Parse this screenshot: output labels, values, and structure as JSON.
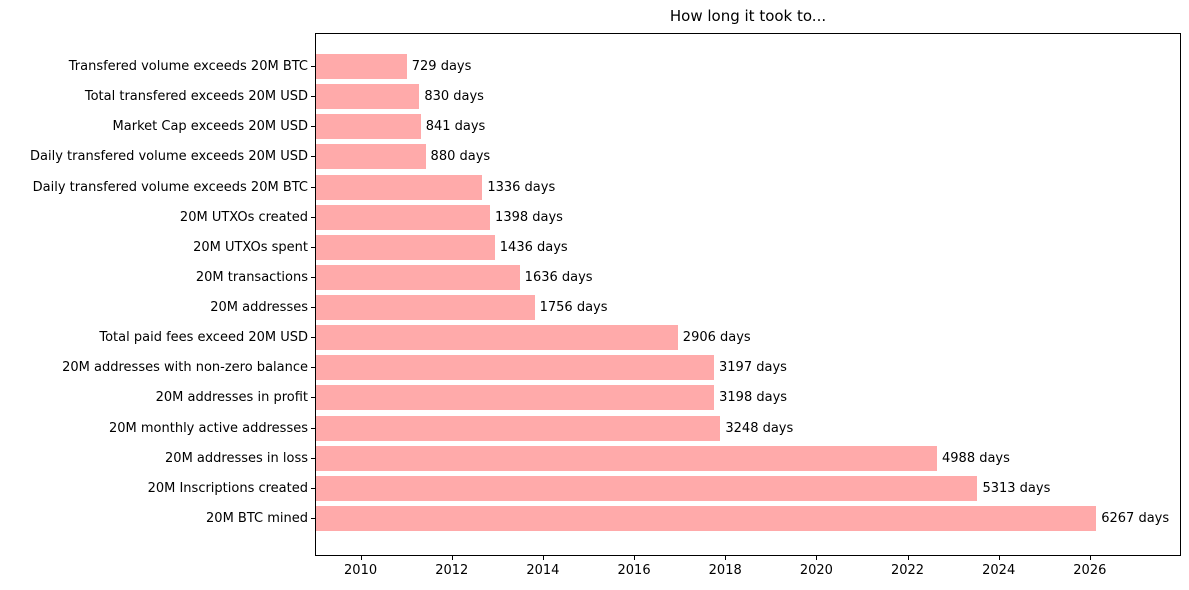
{
  "chart_data": {
    "type": "bar",
    "orientation": "horizontal",
    "title": "How long it took to...",
    "categories": [
      "Transfered volume exceeds 20M BTC",
      "Total transfered exceeds 20M USD",
      "Market Cap exceeds 20M USD",
      "Daily transfered volume exceeds 20M USD",
      "Daily transfered volume exceeds 20M BTC",
      "20M UTXOs created",
      "20M UTXOs spent",
      "20M transactions",
      "20M addresses",
      "Total paid fees exceed 20M USD",
      "20M addresses with non-zero balance",
      "20M addresses in profit",
      "20M monthly active addresses",
      "20M addresses in loss",
      "20M Inscriptions created",
      "20M BTC mined"
    ],
    "values": [
      729,
      830,
      841,
      880,
      1336,
      1398,
      1436,
      1636,
      1756,
      2906,
      3197,
      3198,
      3248,
      4988,
      5313,
      6267
    ],
    "value_suffix": " days",
    "bar_color": "#ffaaaa",
    "x_axis": {
      "ticks": [
        2010,
        2012,
        2014,
        2016,
        2018,
        2020,
        2022,
        2024,
        2026
      ],
      "tick_labels": [
        "2010",
        "2012",
        "2014",
        "2016",
        "2018",
        "2020",
        "2022",
        "2024",
        "2026"
      ],
      "xlim": [
        2009.0,
        2028.0
      ]
    },
    "grid": false,
    "legend_position": "none"
  }
}
